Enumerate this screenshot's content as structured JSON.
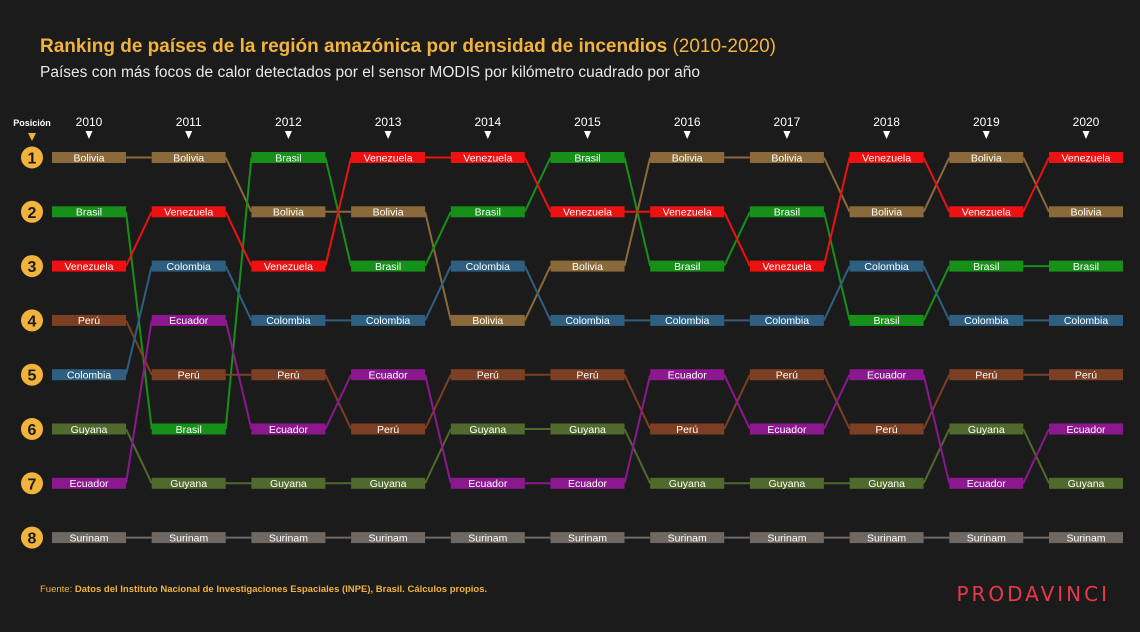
{
  "header": {
    "title_main": "Ranking de países de la región amazónica por densidad de incendios",
    "title_range": "(2010-2020)",
    "subtitle": "Países con más focos de calor detectados por el sensor MODIS por kilómetro cuadrado por año"
  },
  "footer": {
    "source_prefix": "Fuente: ",
    "source_text": "Datos del Instituto Nacional de Investigaciones Espaciales (INPE), Brasil. Cálculos propios.",
    "logo": "PRODAVINCI"
  },
  "colors": {
    "background": "#1b1b1b",
    "accent": "#f2b33d",
    "Bolivia": "#8a6a3a",
    "Brasil": "#17901a",
    "Venezuela": "#ee1111",
    "Colombia": "#2e5f80",
    "Perú": "#7d3f23",
    "Guyana": "#4f6a2c",
    "Ecuador": "#8c1890",
    "Surinam": "#6f6862"
  },
  "chart_data": {
    "type": "bump",
    "position_label": "Posición",
    "years": [
      "2010",
      "2011",
      "2012",
      "2013",
      "2014",
      "2015",
      "2016",
      "2017",
      "2018",
      "2019",
      "2020"
    ],
    "ranks": [
      1,
      2,
      3,
      4,
      5,
      6,
      7,
      8
    ],
    "series": [
      {
        "name": "Bolivia",
        "ranks": [
          1,
          1,
          2,
          2,
          4,
          3,
          1,
          1,
          2,
          1,
          2
        ]
      },
      {
        "name": "Brasil",
        "ranks": [
          2,
          6,
          1,
          3,
          2,
          1,
          3,
          2,
          4,
          3,
          3
        ]
      },
      {
        "name": "Venezuela",
        "ranks": [
          3,
          2,
          3,
          1,
          1,
          2,
          2,
          3,
          1,
          2,
          1
        ]
      },
      {
        "name": "Perú",
        "ranks": [
          4,
          5,
          5,
          6,
          5,
          5,
          6,
          5,
          6,
          5,
          5
        ]
      },
      {
        "name": "Colombia",
        "ranks": [
          5,
          3,
          4,
          4,
          3,
          4,
          4,
          4,
          3,
          4,
          4
        ]
      },
      {
        "name": "Guyana",
        "ranks": [
          6,
          7,
          7,
          7,
          6,
          6,
          7,
          7,
          7,
          6,
          7
        ]
      },
      {
        "name": "Ecuador",
        "ranks": [
          7,
          4,
          6,
          5,
          7,
          7,
          5,
          6,
          5,
          7,
          6
        ]
      },
      {
        "name": "Surinam",
        "ranks": [
          8,
          8,
          8,
          8,
          8,
          8,
          8,
          8,
          8,
          8,
          8
        ]
      }
    ]
  }
}
